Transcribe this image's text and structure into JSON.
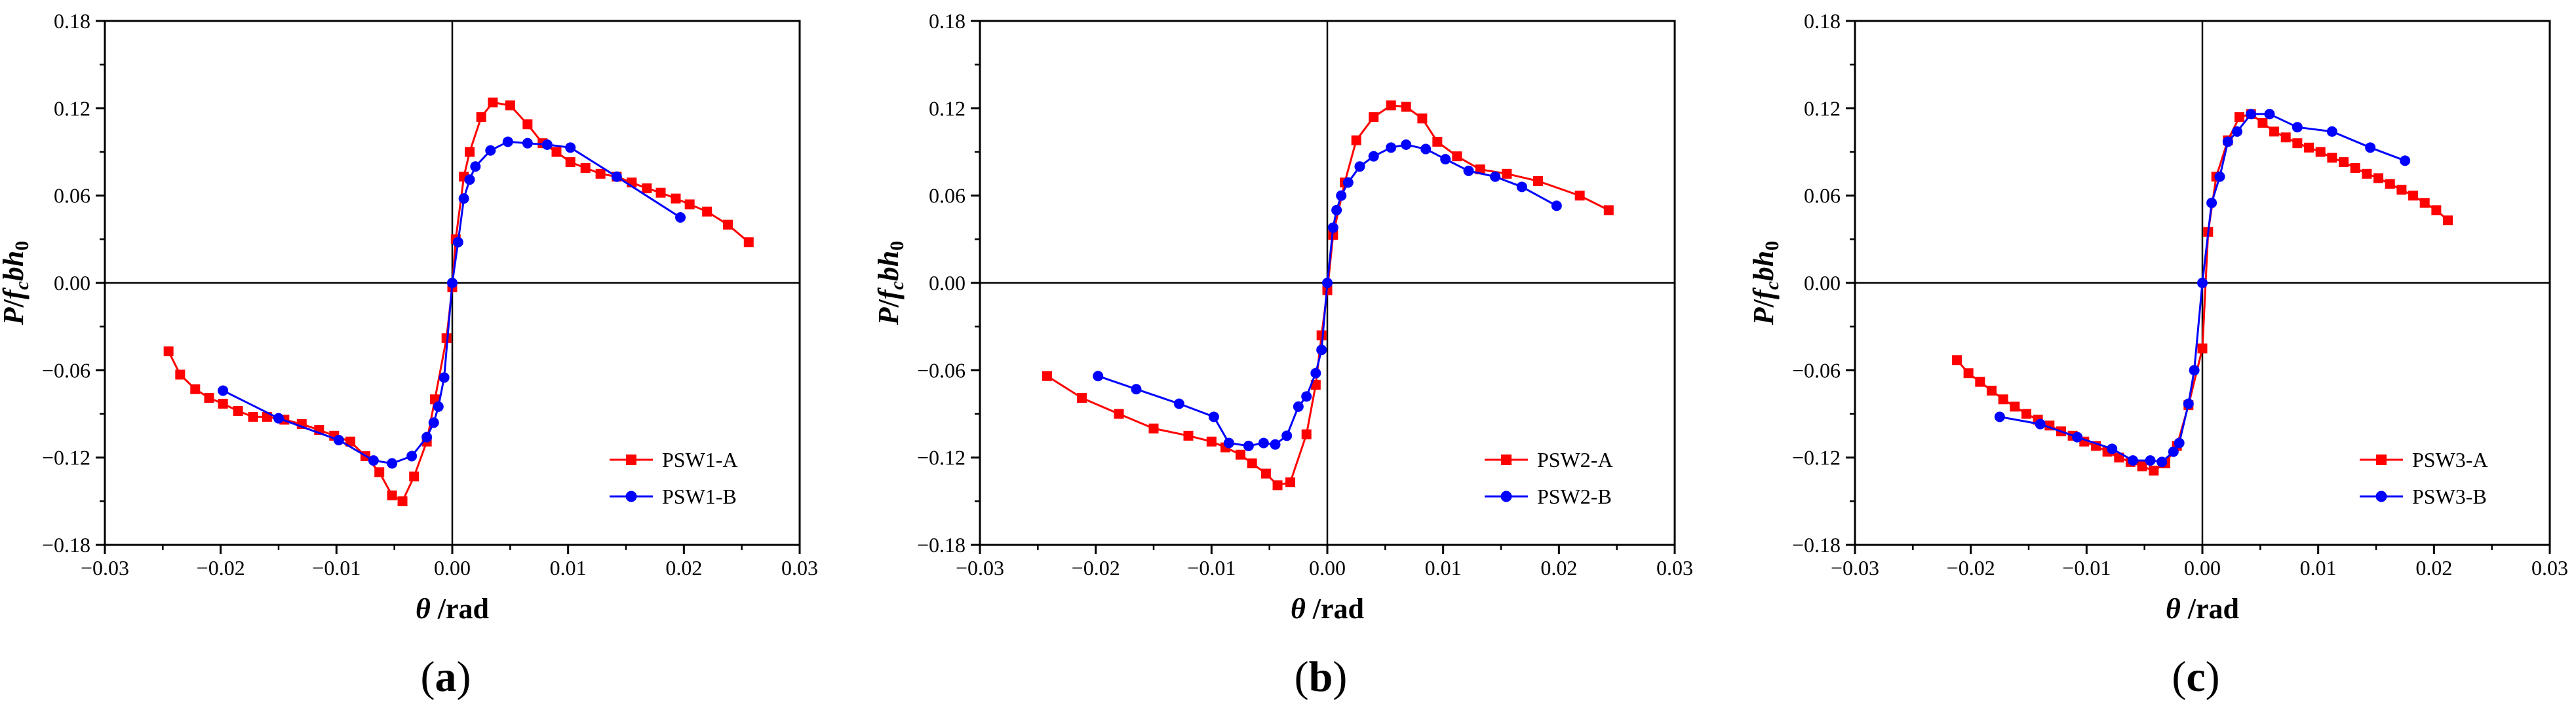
{
  "colors": {
    "series_a": "#ff0000",
    "series_b": "#0000ff",
    "axis": "#000000"
  },
  "chart_data": [
    {
      "type": "line",
      "panel_label": "(a)",
      "panel_letter": "a",
      "xlabel": "θ /rad",
      "ylabel": "P/fcbh0",
      "xlim": [
        -0.03,
        0.03
      ],
      "ylim": [
        -0.18,
        0.18
      ],
      "xticks": [
        -0.03,
        -0.02,
        -0.01,
        0.0,
        0.01,
        0.02,
        0.03
      ],
      "xtick_labels": [
        "−0.03",
        "−0.02",
        "−0.01",
        "0.00",
        "0.01",
        "0.02",
        "0.03"
      ],
      "yticks": [
        0.18,
        0.12,
        0.06,
        0.0,
        -0.06,
        -0.12,
        -0.18
      ],
      "ytick_labels": [
        "0.18",
        "0.12",
        "0.06",
        "0.00",
        "−0.06",
        "−0.12",
        "−0.18"
      ],
      "legend_position": "bottom-right",
      "series": [
        {
          "name": "PSW1-A",
          "marker": "square",
          "color": "#ff0000",
          "x": [
            -0.0245,
            -0.0235,
            -0.0222,
            -0.021,
            -0.0198,
            -0.0185,
            -0.0172,
            -0.016,
            -0.0145,
            -0.013,
            -0.0115,
            -0.0102,
            -0.0088,
            -0.0075,
            -0.0063,
            -0.0052,
            -0.0043,
            -0.0033,
            -0.0022,
            -0.0015,
            -0.0005,
            0.0,
            0.0003,
            0.001,
            0.0015,
            0.0025,
            0.0035,
            0.005,
            0.0065,
            0.0078,
            0.009,
            0.0102,
            0.0115,
            0.0128,
            0.0142,
            0.0155,
            0.0168,
            0.018,
            0.0193,
            0.0205,
            0.022,
            0.0238,
            0.0256
          ],
          "y": [
            -0.047,
            -0.063,
            -0.073,
            -0.079,
            -0.083,
            -0.088,
            -0.092,
            -0.092,
            -0.094,
            -0.097,
            -0.101,
            -0.105,
            -0.109,
            -0.119,
            -0.13,
            -0.146,
            -0.15,
            -0.133,
            -0.109,
            -0.08,
            -0.038,
            -0.003,
            0.03,
            0.073,
            0.09,
            0.114,
            0.124,
            0.122,
            0.109,
            0.096,
            0.09,
            0.083,
            0.079,
            0.075,
            0.073,
            0.069,
            0.065,
            0.062,
            0.058,
            0.054,
            0.049,
            0.04,
            0.028
          ]
        },
        {
          "name": "PSW1-B",
          "marker": "circle",
          "color": "#0000ff",
          "x": [
            -0.0198,
            -0.015,
            -0.0098,
            -0.0068,
            -0.0052,
            -0.0035,
            -0.0022,
            -0.0016,
            -0.0012,
            -0.0007,
            0.0,
            0.0005,
            0.001,
            0.0015,
            0.002,
            0.0033,
            0.0048,
            0.0065,
            0.0082,
            0.0102,
            0.0142,
            0.0197
          ],
          "y": [
            -0.074,
            -0.093,
            -0.108,
            -0.122,
            -0.124,
            -0.119,
            -0.106,
            -0.096,
            -0.085,
            -0.065,
            0.0,
            0.028,
            0.058,
            0.071,
            0.08,
            0.091,
            0.097,
            0.096,
            0.095,
            0.093,
            0.073,
            0.045
          ]
        }
      ]
    },
    {
      "type": "line",
      "panel_label": "(b)",
      "panel_letter": "b",
      "xlabel": "θ /rad",
      "ylabel": "P/fcbh0",
      "xlim": [
        -0.03,
        0.03
      ],
      "ylim": [
        -0.18,
        0.18
      ],
      "xticks": [
        -0.03,
        -0.02,
        -0.01,
        0.0,
        0.01,
        0.02,
        0.03
      ],
      "xtick_labels": [
        "−0.03",
        "−0.02",
        "−0.01",
        "0.00",
        "0.01",
        "0.02",
        "0.03"
      ],
      "yticks": [
        0.18,
        0.12,
        0.06,
        0.0,
        -0.06,
        -0.12,
        -0.18
      ],
      "ytick_labels": [
        "0.18",
        "0.12",
        "0.06",
        "0.00",
        "−0.06",
        "−0.12",
        "−0.18"
      ],
      "legend_position": "bottom-right",
      "series": [
        {
          "name": "PSW2-A",
          "marker": "square",
          "color": "#ff0000",
          "x": [
            -0.0242,
            -0.0212,
            -0.018,
            -0.015,
            -0.012,
            -0.01,
            -0.0088,
            -0.0075,
            -0.0065,
            -0.0053,
            -0.0043,
            -0.0032,
            -0.0018,
            -0.001,
            -0.0005,
            0.0,
            0.0005,
            0.0015,
            0.0025,
            0.004,
            0.0055,
            0.0068,
            0.0082,
            0.0095,
            0.0112,
            0.0132,
            0.0155,
            0.0182,
            0.0218,
            0.0243
          ],
          "y": [
            -0.064,
            -0.079,
            -0.09,
            -0.1,
            -0.105,
            -0.109,
            -0.113,
            -0.118,
            -0.124,
            -0.131,
            -0.139,
            -0.137,
            -0.104,
            -0.07,
            -0.036,
            -0.005,
            0.033,
            0.069,
            0.098,
            0.114,
            0.122,
            0.121,
            0.113,
            0.097,
            0.087,
            0.078,
            0.075,
            0.07,
            0.06,
            0.05
          ]
        },
        {
          "name": "PSW2-B",
          "marker": "circle",
          "color": "#0000ff",
          "x": [
            -0.0198,
            -0.0165,
            -0.0128,
            -0.0098,
            -0.0085,
            -0.0068,
            -0.0055,
            -0.0045,
            -0.0035,
            -0.0025,
            -0.0018,
            -0.001,
            -0.0005,
            0.0,
            0.0005,
            0.0008,
            0.0012,
            0.0018,
            0.0028,
            0.004,
            0.0055,
            0.0068,
            0.0085,
            0.0102,
            0.0122,
            0.0145,
            0.0168,
            0.0198
          ],
          "y": [
            -0.064,
            -0.073,
            -0.083,
            -0.092,
            -0.11,
            -0.112,
            -0.11,
            -0.111,
            -0.105,
            -0.085,
            -0.078,
            -0.062,
            -0.046,
            0.0,
            0.038,
            0.05,
            0.06,
            0.069,
            0.08,
            0.087,
            0.093,
            0.095,
            0.092,
            0.085,
            0.077,
            0.073,
            0.066,
            0.053
          ]
        }
      ]
    },
    {
      "type": "line",
      "panel_label": "(c)",
      "panel_letter": "c",
      "xlabel": "θ /rad",
      "ylabel": "P/fcbh0",
      "xlim": [
        -0.03,
        0.03
      ],
      "ylim": [
        -0.18,
        0.18
      ],
      "xticks": [
        -0.03,
        -0.02,
        -0.01,
        0.0,
        0.01,
        0.02,
        0.03
      ],
      "xtick_labels": [
        "−0.03",
        "−0.02",
        "−0.01",
        "0.00",
        "0.01",
        "0.02",
        "0.03"
      ],
      "yticks": [
        0.18,
        0.12,
        0.06,
        0.0,
        -0.06,
        -0.12,
        -0.18
      ],
      "ytick_labels": [
        "0.18",
        "0.12",
        "0.06",
        "0.00",
        "−0.06",
        "−0.12",
        "−0.18"
      ],
      "legend_position": "bottom-right",
      "series": [
        {
          "name": "PSW3-A",
          "marker": "square",
          "color": "#ff0000",
          "x": [
            -0.0212,
            -0.0202,
            -0.0192,
            -0.0182,
            -0.0172,
            -0.0162,
            -0.0152,
            -0.0142,
            -0.0132,
            -0.0122,
            -0.0112,
            -0.0102,
            -0.0092,
            -0.0082,
            -0.0072,
            -0.0062,
            -0.0052,
            -0.0042,
            -0.0032,
            -0.0022,
            -0.0012,
            0.0,
            0.0005,
            0.0012,
            0.0022,
            0.0032,
            0.0042,
            0.0052,
            0.0062,
            0.0072,
            0.0082,
            0.0092,
            0.0102,
            0.0112,
            0.0122,
            0.0132,
            0.0142,
            0.0152,
            0.0162,
            0.0172,
            0.0182,
            0.0192,
            0.0202,
            0.0212
          ],
          "y": [
            -0.053,
            -0.062,
            -0.068,
            -0.074,
            -0.08,
            -0.085,
            -0.09,
            -0.094,
            -0.098,
            -0.102,
            -0.105,
            -0.109,
            -0.112,
            -0.116,
            -0.12,
            -0.123,
            -0.126,
            -0.129,
            -0.124,
            -0.112,
            -0.084,
            -0.045,
            0.035,
            0.073,
            0.098,
            0.114,
            0.116,
            0.11,
            0.104,
            0.1,
            0.096,
            0.093,
            0.09,
            0.086,
            0.083,
            0.079,
            0.075,
            0.072,
            0.068,
            0.064,
            0.06,
            0.055,
            0.05,
            0.043
          ]
        },
        {
          "name": "PSW3-B",
          "marker": "circle",
          "color": "#0000ff",
          "x": [
            -0.0175,
            -0.014,
            -0.0108,
            -0.0078,
            -0.006,
            -0.0045,
            -0.0035,
            -0.0025,
            -0.002,
            -0.0012,
            -0.0007,
            0.0,
            0.0008,
            0.0015,
            0.0022,
            0.003,
            0.0042,
            0.0058,
            0.0082,
            0.0112,
            0.0145,
            0.0175
          ],
          "y": [
            -0.092,
            -0.097,
            -0.106,
            -0.114,
            -0.122,
            -0.122,
            -0.123,
            -0.116,
            -0.11,
            -0.083,
            -0.06,
            0.0,
            0.055,
            0.073,
            0.097,
            0.104,
            0.116,
            0.116,
            0.107,
            0.104,
            0.093,
            0.084
          ]
        }
      ]
    }
  ]
}
